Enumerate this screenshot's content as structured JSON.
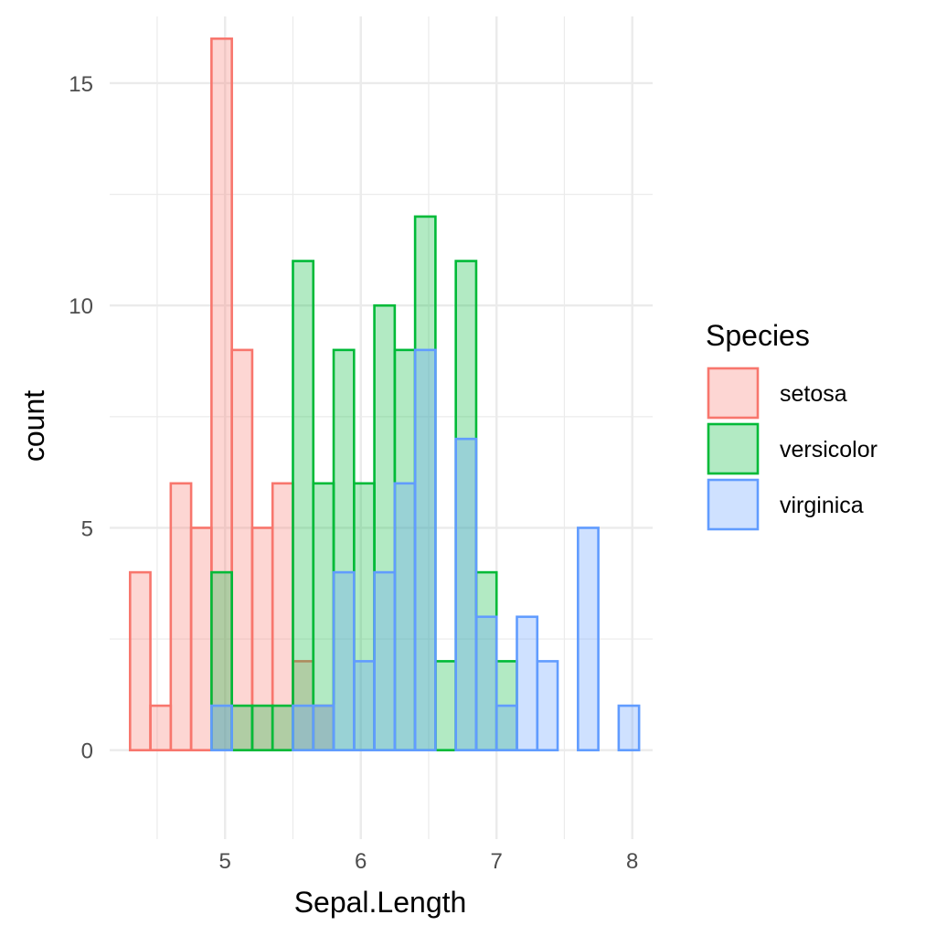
{
  "chart_data": {
    "type": "bar",
    "subtype": "histogram-overlapping",
    "xlabel": "Sepal.Length",
    "ylabel": "count",
    "xlim": [
      4.15,
      8.15
    ],
    "ylim": [
      -2.0,
      16.5
    ],
    "x_ticks": [
      5,
      6,
      7,
      8
    ],
    "y_ticks": [
      0,
      5,
      10,
      15
    ],
    "bin_starts": [
      4.3,
      4.45,
      4.6,
      4.75,
      4.9,
      5.05,
      5.2,
      5.35,
      5.5,
      5.65,
      5.8,
      5.95,
      6.1,
      6.25,
      6.4,
      6.55,
      6.7,
      6.85,
      7.0,
      7.15,
      7.3,
      7.45,
      7.6,
      7.75,
      7.9
    ],
    "bin_width": 0.15,
    "grid": true,
    "legend": {
      "title": "Species",
      "position": "right"
    },
    "series": [
      {
        "name": "setosa",
        "stroke": "#F8766D",
        "fill": "#F8766D",
        "values": [
          4,
          1,
          6,
          5,
          16,
          9,
          5,
          6,
          2,
          1,
          0,
          0,
          0,
          0,
          0,
          0,
          0,
          0,
          0,
          0,
          0,
          0,
          0,
          0,
          0
        ]
      },
      {
        "name": "versicolor",
        "stroke": "#00BA38",
        "fill": "#00BA38",
        "values": [
          0,
          0,
          0,
          0,
          4,
          1,
          1,
          1,
          11,
          6,
          9,
          6,
          10,
          9,
          12,
          2,
          11,
          4,
          2,
          0,
          0,
          0,
          0,
          0,
          0
        ]
      },
      {
        "name": "virginica",
        "stroke": "#619CFF",
        "fill": "#619CFF",
        "values": [
          0,
          0,
          0,
          0,
          1,
          0,
          0,
          0,
          1,
          1,
          4,
          2,
          4,
          6,
          9,
          0,
          7,
          3,
          1,
          3,
          2,
          0,
          5,
          0,
          1
        ]
      }
    ]
  }
}
